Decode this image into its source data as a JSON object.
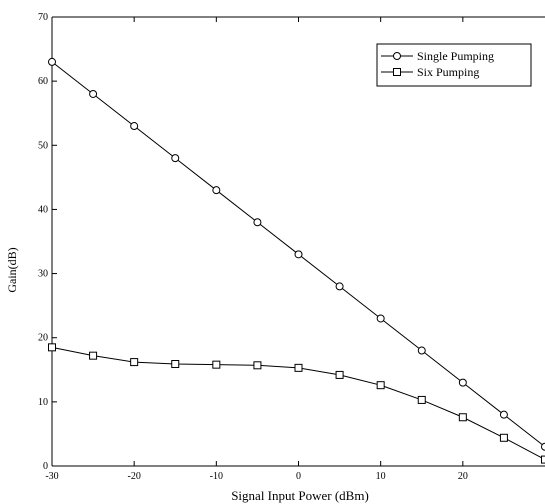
{
  "chart_data": {
    "type": "line",
    "xlabel": "Signal Input Power (dBm)",
    "ylabel": "Gain(dB)",
    "xlim": [
      -30,
      30
    ],
    "ylim": [
      0,
      70
    ],
    "xticks": [
      -30,
      -20,
      -10,
      0,
      10,
      20
    ],
    "yticks": [
      0,
      10,
      20,
      30,
      40,
      50,
      60,
      70
    ],
    "x_tick_labels": [
      "-30",
      "-20",
      "-10",
      "0",
      "10",
      "20"
    ],
    "y_tick_labels": [
      "0",
      "10",
      "20",
      "30",
      "40",
      "50",
      "60",
      "70"
    ],
    "grid": false,
    "legend": "top-right",
    "x": [
      -30,
      -25,
      -20,
      -15,
      -10,
      -5,
      0,
      5,
      10,
      15,
      20,
      25,
      30
    ],
    "series": [
      {
        "name": "Single Pumping",
        "marker": "circle",
        "values": [
          63,
          58,
          53,
          48,
          43,
          38,
          33,
          28,
          23,
          18,
          13,
          8,
          3
        ]
      },
      {
        "name": "Six Pumping",
        "marker": "square",
        "values": [
          18.5,
          17.2,
          16.2,
          15.9,
          15.8,
          15.7,
          15.3,
          14.2,
          12.6,
          10.3,
          7.6,
          4.4,
          1
        ]
      }
    ]
  }
}
